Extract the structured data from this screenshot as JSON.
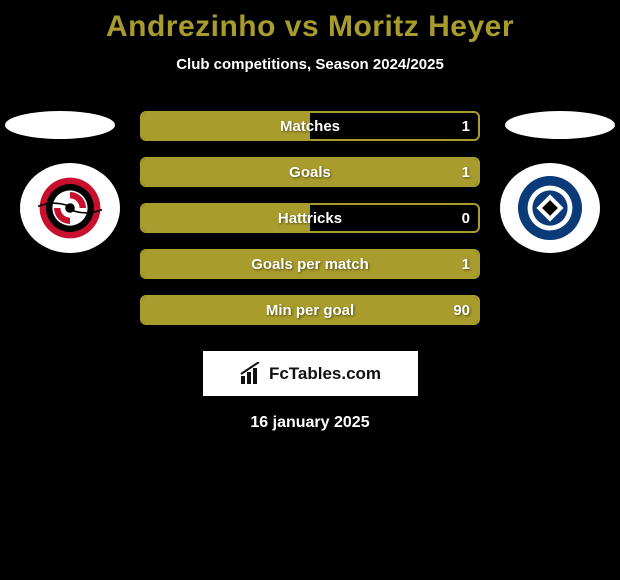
{
  "title": "Andrezinho vs Moritz Heyer",
  "subtitle": "Club competitions, Season 2024/2025",
  "date": "16 january 2025",
  "branding": "FcTables.com",
  "colors": {
    "accent": "#a89c2c",
    "background": "#000000",
    "text": "#ffffff",
    "badge_bg": "#ffffff"
  },
  "stats": [
    {
      "label": "Matches",
      "value": "1",
      "fill_pct": 50
    },
    {
      "label": "Goals",
      "value": "1",
      "fill_pct": 100
    },
    {
      "label": "Hattricks",
      "value": "0",
      "fill_pct": 50
    },
    {
      "label": "Goals per match",
      "value": "1",
      "fill_pct": 100
    },
    {
      "label": "Min per goal",
      "value": "90",
      "fill_pct": 100
    }
  ],
  "player_left": {
    "badge_colors": {
      "outer": "#c8102e",
      "inner": "#000000",
      "swirl": "#c8102e",
      "bg": "#ffffff"
    }
  },
  "player_right": {
    "badge_colors": {
      "outer": "#0a3a78",
      "mid": "#ffffff",
      "inner": "#0a3a78",
      "diamond": "#000000"
    }
  }
}
